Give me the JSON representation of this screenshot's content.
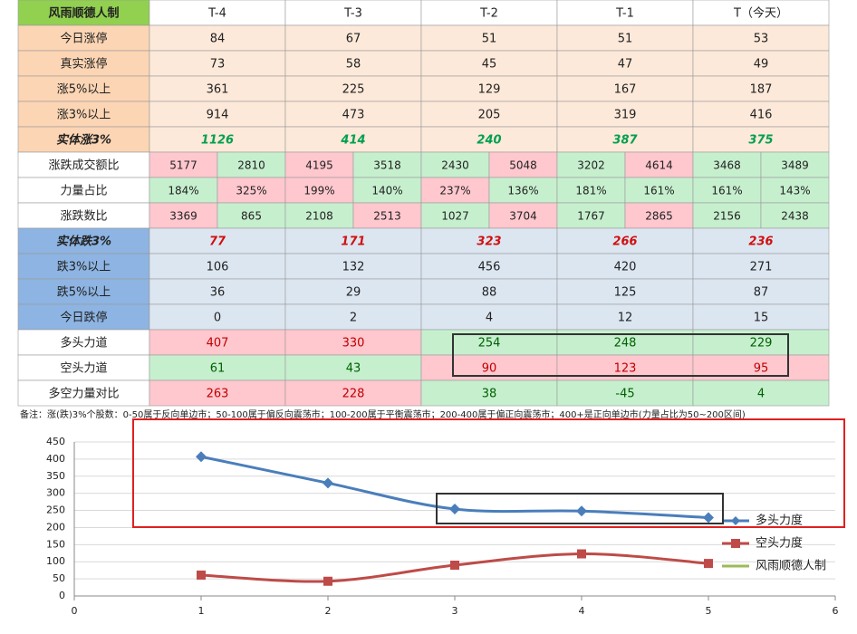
{
  "table": {
    "header": [
      "风雨顺德人制",
      "T-4",
      "T-3",
      "T-2",
      "T-1",
      "T（今天）"
    ],
    "rows": [
      {
        "label": "今日涨停",
        "cells": [
          84,
          67,
          51,
          51,
          53
        ]
      },
      {
        "label": "真实涨停",
        "cells": [
          73,
          58,
          45,
          47,
          49
        ]
      },
      {
        "label": "涨5%以上",
        "cells": [
          361,
          225,
          129,
          167,
          187
        ]
      },
      {
        "label": "涨3%以上",
        "cells": [
          914,
          473,
          205,
          319,
          416
        ]
      },
      {
        "label": "实体涨3%",
        "cells": [
          1126,
          414,
          240,
          387,
          375
        ]
      },
      {
        "label": "涨跌成交额比",
        "cells": [
          [
            5177,
            2810
          ],
          [
            4195,
            3518
          ],
          [
            2430,
            5048
          ],
          [
            3202,
            4614
          ],
          [
            3468,
            3489
          ]
        ]
      },
      {
        "label": "力量占比",
        "cells": [
          [
            "184%",
            "325%"
          ],
          [
            "199%",
            "140%"
          ],
          [
            "237%",
            "136%"
          ],
          [
            "181%",
            "161%"
          ],
          [
            "161%",
            "143%"
          ]
        ]
      },
      {
        "label": "涨跌数比",
        "cells": [
          [
            3369,
            865
          ],
          [
            2108,
            2513
          ],
          [
            1027,
            3704
          ],
          [
            1767,
            2865
          ],
          [
            2156,
            2438
          ]
        ]
      },
      {
        "label": "实体跌3%",
        "cells": [
          77,
          171,
          323,
          266,
          236
        ]
      },
      {
        "label": "跌3%以上",
        "cells": [
          106,
          132,
          456,
          420,
          271
        ]
      },
      {
        "label": "跌5%以上",
        "cells": [
          36,
          29,
          88,
          125,
          87
        ]
      },
      {
        "label": "今日跌停",
        "cells": [
          0,
          2,
          4,
          12,
          15
        ]
      },
      {
        "label": "多头力道",
        "cells": [
          407,
          330,
          254,
          248,
          229
        ]
      },
      {
        "label": "空头力道",
        "cells": [
          61,
          43,
          90,
          123,
          95
        ]
      },
      {
        "label": "多空力量对比",
        "cells": [
          263,
          228,
          38,
          -45,
          4
        ]
      }
    ],
    "note": "备注：涨(跌)3%个股数：0-50属于反向单边市；50-100属于偏反向震荡市；100-200属于平衡震荡市；200-400属于偏正向震荡市；400+是正向单边市(力量占比为50~200区间)"
  },
  "chart_data": {
    "type": "line",
    "x": [
      1,
      2,
      3,
      4,
      5
    ],
    "series": [
      {
        "name": "多头力度",
        "color": "#4a7ebb",
        "marker": "diamond",
        "values": [
          407,
          330,
          254,
          248,
          229
        ]
      },
      {
        "name": "空头力度",
        "color": "#be4b48",
        "marker": "square",
        "values": [
          61,
          43,
          90,
          123,
          95
        ]
      },
      {
        "name": "风雨顺德人制",
        "color": "#9bbb59",
        "marker": "none",
        "values": [
          null,
          null,
          null,
          null,
          null
        ]
      }
    ],
    "xlim": [
      0,
      6
    ],
    "xticks": [
      0,
      1,
      2,
      3,
      4,
      5,
      6
    ],
    "ylim": [
      0,
      450
    ],
    "yticks": [
      0,
      50,
      100,
      150,
      200,
      250,
      300,
      350,
      400,
      450
    ],
    "grid": true,
    "smooth": true,
    "legend": "right"
  }
}
